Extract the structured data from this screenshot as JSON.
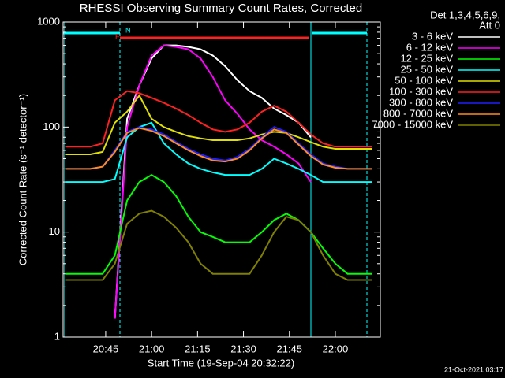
{
  "chart_data": {
    "type": "line",
    "title": "RHESSI Observing Summary Count Rates, Corrected",
    "x_label": "Start Time (19-Sep-04 20:32:22)",
    "y_label": "Corrected Count Rate (s⁻¹ detector⁻¹)",
    "legend_header": [
      "Det 1,3,4,5,6,9,",
      "Att 0"
    ],
    "flags": [
      "F",
      "N"
    ],
    "timestamp": "21-Oct-2021 03:17",
    "log_y": true,
    "xlim": [
      31.1,
      134.7
    ],
    "ylim": [
      1,
      1000
    ],
    "xticks": [
      {
        "value": 45,
        "label": "20:45"
      },
      {
        "value": 60,
        "label": "21:00"
      },
      {
        "value": 75,
        "label": "21:15"
      },
      {
        "value": 90,
        "label": "21:30"
      },
      {
        "value": 105,
        "label": "21:45"
      },
      {
        "value": 120,
        "label": "22:00"
      }
    ],
    "yticks": [
      1,
      10,
      100,
      1000
    ],
    "x": [
      32,
      36,
      40,
      44,
      48,
      52,
      56,
      60,
      64,
      68,
      72,
      76,
      80,
      84,
      88,
      92,
      96,
      100,
      104,
      108,
      112,
      116,
      120,
      124,
      128,
      132
    ],
    "series": [
      {
        "name": "3 - 6 keV",
        "color": "#ffffff",
        "values": [
          null,
          null,
          null,
          null,
          1.5,
          120,
          250,
          450,
          600,
          600,
          580,
          550,
          480,
          380,
          280,
          220,
          190,
          150,
          130,
          110,
          80,
          null,
          null,
          null,
          null,
          null
        ]
      },
      {
        "name": "6 - 12 keV",
        "color": "#ff00ff",
        "values": [
          null,
          null,
          null,
          null,
          1.5,
          100,
          250,
          480,
          600,
          580,
          550,
          450,
          300,
          180,
          134,
          95,
          75,
          65,
          55,
          45,
          30,
          null,
          null,
          null,
          null,
          null
        ]
      },
      {
        "name": "12 - 25 keV",
        "color": "#00ff00",
        "values": [
          4,
          4,
          4,
          4,
          6,
          20,
          30,
          35,
          30,
          22,
          14,
          10,
          9,
          8,
          8,
          8,
          10,
          13,
          15,
          13,
          10,
          7,
          5,
          4,
          4,
          4
        ]
      },
      {
        "name": "25 - 50 keV",
        "color": "#00ffff",
        "values": [
          30,
          30,
          30,
          30,
          32,
          80,
          100,
          110,
          70,
          55,
          45,
          40,
          37,
          35,
          35,
          35,
          40,
          50,
          45,
          40,
          35,
          30,
          30,
          30,
          30,
          30
        ]
      },
      {
        "name": "50 - 100 keV",
        "color": "#e0e000",
        "values": [
          55,
          55,
          55,
          58,
          110,
          140,
          200,
          120,
          100,
          90,
          82,
          78,
          75,
          75,
          75,
          78,
          85,
          90,
          88,
          80,
          72,
          65,
          62,
          62,
          62,
          62
        ]
      },
      {
        "name": "100 - 300 keV",
        "color": "#ff2020",
        "values": [
          65,
          65,
          65,
          70,
          180,
          220,
          210,
          190,
          170,
          150,
          130,
          110,
          95,
          90,
          95,
          110,
          140,
          160,
          140,
          110,
          85,
          70,
          65,
          65,
          65,
          65
        ]
      },
      {
        "name": "300 - 800 keV",
        "color": "#2020ff",
        "values": [
          40,
          40,
          40,
          42,
          60,
          90,
          100,
          95,
          85,
          72,
          62,
          55,
          50,
          48,
          52,
          62,
          80,
          100,
          90,
          70,
          55,
          45,
          42,
          40,
          40,
          40
        ]
      },
      {
        "name": "800 - 7000 keV",
        "color": "#ff8c20",
        "values": [
          40,
          40,
          40,
          42,
          58,
          88,
          98,
          92,
          82,
          70,
          60,
          53,
          48,
          47,
          50,
          60,
          78,
          95,
          88,
          68,
          53,
          44,
          41,
          40,
          40,
          40
        ]
      },
      {
        "name": "7000 - 15000 keV",
        "color": "#808000",
        "values": [
          3.5,
          3.5,
          3.5,
          3.5,
          5,
          12,
          15,
          16,
          14,
          11,
          8,
          5,
          4,
          4,
          4,
          4,
          6,
          10,
          14,
          13,
          10,
          6,
          4,
          3.5,
          3.5,
          3.5
        ]
      }
    ]
  }
}
